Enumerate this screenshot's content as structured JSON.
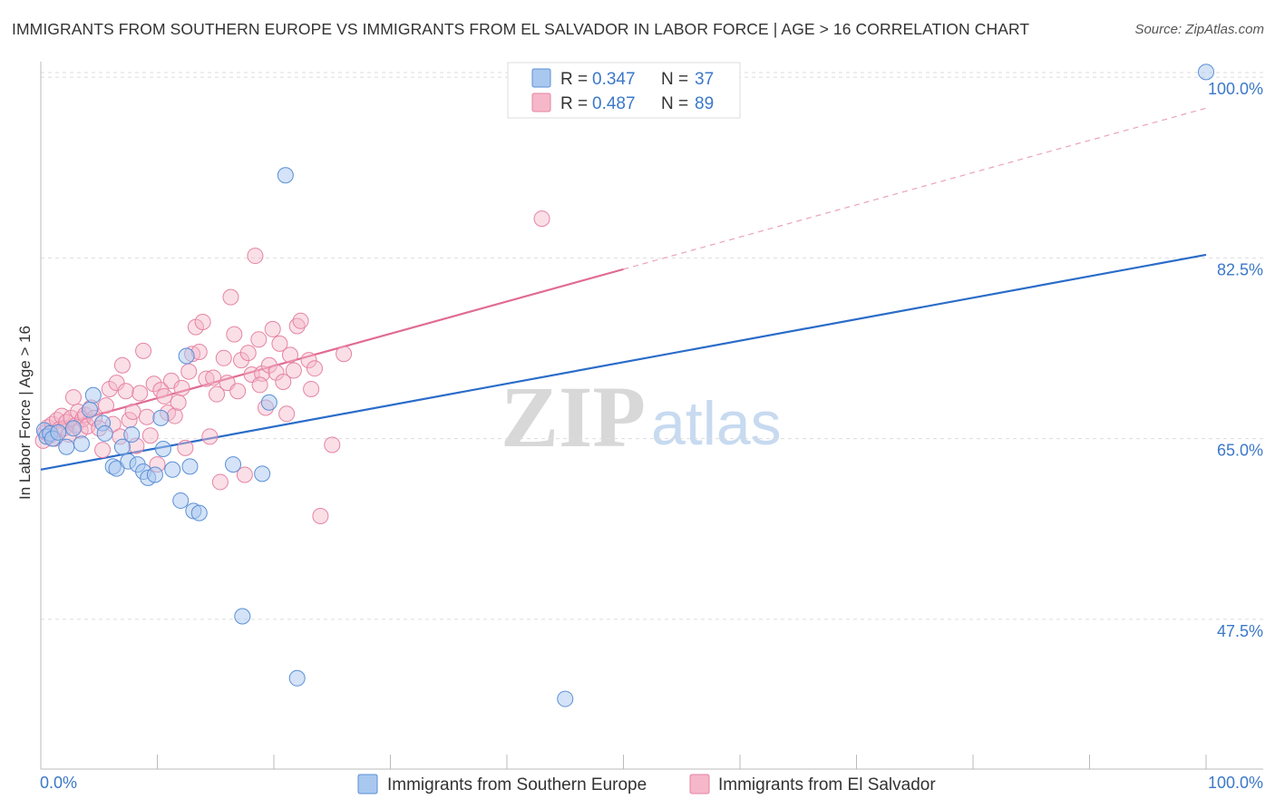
{
  "header": {
    "title": "IMMIGRANTS FROM SOUTHERN EUROPE VS IMMIGRANTS FROM EL SALVADOR IN LABOR FORCE | AGE > 16 CORRELATION CHART",
    "source": "Source: ZipAtlas.com"
  },
  "watermark": {
    "zip": "ZIP",
    "atlas": "atlas"
  },
  "legend": {
    "r_label": "R =",
    "n_label": "N =",
    "series1": {
      "r": "0.347",
      "n": "37"
    },
    "series2": {
      "r": "0.487",
      "n": "89"
    }
  },
  "colors": {
    "blue_fill": "#a9c8ef",
    "blue_stroke": "#5b8fd6",
    "blue_line": "#2a6cc9",
    "pink_fill": "#f5b7c9",
    "pink_stroke": "#e584a4",
    "pink_line": "#e06b93",
    "grid": "#dddddd",
    "tick_text": "#3b78c9"
  },
  "chart_data": {
    "type": "scatter",
    "title": "IMMIGRANTS FROM SOUTHERN EUROPE VS IMMIGRANTS FROM EL SALVADOR IN LABOR FORCE | AGE > 16 CORRELATION CHART",
    "xlabel": "",
    "ylabel": "In Labor Force | Age > 16",
    "xlim": [
      0,
      100
    ],
    "ylim": [
      33,
      101.5
    ],
    "x_tick_labels": [
      "0.0%",
      "100.0%"
    ],
    "y_ticks": [
      47.5,
      65.0,
      82.5,
      100.0
    ],
    "y_tick_labels": [
      "47.5%",
      "65.0%",
      "82.5%",
      "100.0%"
    ],
    "grid": true,
    "series": [
      {
        "name": "Immigrants from Southern Europe",
        "color": "#a9c8ef",
        "R": 0.347,
        "N": 37,
        "trend": {
          "x": [
            0,
            100
          ],
          "y": [
            62.0,
            82.8
          ],
          "dashed_from": null
        },
        "points": [
          [
            0.3,
            65.8
          ],
          [
            0.5,
            65.2
          ],
          [
            0.8,
            65.5
          ],
          [
            1.0,
            65.0
          ],
          [
            1.5,
            65.6
          ],
          [
            2.2,
            64.2
          ],
          [
            2.8,
            66.0
          ],
          [
            3.5,
            64.5
          ],
          [
            4.2,
            67.8
          ],
          [
            4.5,
            69.2
          ],
          [
            5.3,
            66.5
          ],
          [
            5.5,
            65.5
          ],
          [
            6.2,
            62.3
          ],
          [
            6.5,
            62.1
          ],
          [
            7.0,
            64.2
          ],
          [
            7.5,
            62.8
          ],
          [
            7.8,
            65.4
          ],
          [
            8.3,
            62.5
          ],
          [
            8.8,
            61.8
          ],
          [
            9.2,
            61.2
          ],
          [
            9.8,
            61.5
          ],
          [
            10.3,
            67.0
          ],
          [
            10.5,
            64.0
          ],
          [
            11.3,
            62.0
          ],
          [
            12.0,
            59.0
          ],
          [
            12.5,
            73.0
          ],
          [
            12.8,
            62.3
          ],
          [
            13.1,
            58.0
          ],
          [
            13.6,
            57.8
          ],
          [
            16.5,
            62.5
          ],
          [
            17.3,
            47.8
          ],
          [
            19.0,
            61.6
          ],
          [
            19.6,
            68.5
          ],
          [
            21.0,
            90.5
          ],
          [
            22.0,
            41.8
          ],
          [
            45.0,
            39.8
          ],
          [
            100.0,
            100.5
          ]
        ]
      },
      {
        "name": "Immigrants from El Salvador",
        "color": "#f5b7c9",
        "R": 0.487,
        "N": 89,
        "trend": {
          "x": [
            0,
            100
          ],
          "y": [
            65.8,
            97.0
          ],
          "dashed_from": 50
        },
        "points": [
          [
            0.2,
            64.8
          ],
          [
            0.4,
            65.6
          ],
          [
            0.6,
            66.1
          ],
          [
            0.8,
            65.3
          ],
          [
            1.0,
            66.4
          ],
          [
            1.2,
            65.0
          ],
          [
            1.4,
            66.8
          ],
          [
            1.6,
            65.9
          ],
          [
            1.8,
            67.2
          ],
          [
            2.0,
            66.0
          ],
          [
            2.2,
            66.6
          ],
          [
            2.4,
            65.4
          ],
          [
            2.6,
            67.0
          ],
          [
            2.8,
            69.0
          ],
          [
            3.0,
            66.3
          ],
          [
            3.2,
            67.6
          ],
          [
            3.4,
            65.8
          ],
          [
            3.6,
            66.9
          ],
          [
            3.8,
            67.3
          ],
          [
            4.0,
            66.2
          ],
          [
            4.3,
            68.0
          ],
          [
            4.6,
            67.0
          ],
          [
            5.0,
            66.0
          ],
          [
            5.3,
            63.9
          ],
          [
            5.6,
            68.2
          ],
          [
            5.9,
            69.8
          ],
          [
            6.2,
            66.4
          ],
          [
            6.5,
            70.4
          ],
          [
            6.8,
            65.2
          ],
          [
            7.0,
            72.1
          ],
          [
            7.3,
            69.6
          ],
          [
            7.6,
            66.8
          ],
          [
            7.9,
            67.6
          ],
          [
            8.2,
            64.3
          ],
          [
            8.5,
            69.4
          ],
          [
            8.8,
            73.5
          ],
          [
            9.1,
            67.1
          ],
          [
            9.4,
            65.3
          ],
          [
            9.7,
            70.3
          ],
          [
            10.0,
            62.5
          ],
          [
            10.3,
            69.7
          ],
          [
            10.6,
            69.1
          ],
          [
            10.9,
            67.5
          ],
          [
            11.2,
            70.6
          ],
          [
            11.5,
            67.2
          ],
          [
            11.8,
            68.5
          ],
          [
            12.1,
            69.9
          ],
          [
            12.4,
            64.1
          ],
          [
            12.7,
            71.5
          ],
          [
            13.0,
            73.2
          ],
          [
            13.3,
            75.8
          ],
          [
            13.6,
            73.4
          ],
          [
            13.9,
            76.3
          ],
          [
            14.2,
            70.8
          ],
          [
            14.5,
            65.2
          ],
          [
            14.8,
            70.9
          ],
          [
            15.1,
            69.3
          ],
          [
            15.4,
            60.8
          ],
          [
            15.7,
            72.8
          ],
          [
            16.0,
            70.4
          ],
          [
            16.3,
            78.7
          ],
          [
            16.6,
            75.1
          ],
          [
            16.9,
            69.6
          ],
          [
            17.2,
            72.6
          ],
          [
            17.5,
            61.5
          ],
          [
            17.8,
            73.3
          ],
          [
            18.1,
            71.2
          ],
          [
            18.4,
            82.7
          ],
          [
            18.7,
            74.6
          ],
          [
            19.0,
            71.3
          ],
          [
            19.3,
            68.0
          ],
          [
            19.6,
            72.1
          ],
          [
            19.9,
            75.6
          ],
          [
            20.2,
            71.4
          ],
          [
            20.5,
            74.2
          ],
          [
            20.8,
            70.5
          ],
          [
            21.1,
            67.4
          ],
          [
            21.4,
            73.1
          ],
          [
            21.7,
            71.6
          ],
          [
            22.0,
            75.9
          ],
          [
            22.3,
            76.4
          ],
          [
            23.0,
            72.6
          ],
          [
            23.5,
            71.8
          ],
          [
            24.0,
            57.5
          ],
          [
            25.0,
            64.4
          ],
          [
            26.0,
            73.2
          ],
          [
            23.2,
            69.8
          ],
          [
            18.8,
            70.2
          ],
          [
            43.0,
            86.3
          ]
        ]
      }
    ]
  },
  "bottom_legend": {
    "series1_label": "Immigrants from Southern Europe",
    "series2_label": "Immigrants from El Salvador"
  }
}
